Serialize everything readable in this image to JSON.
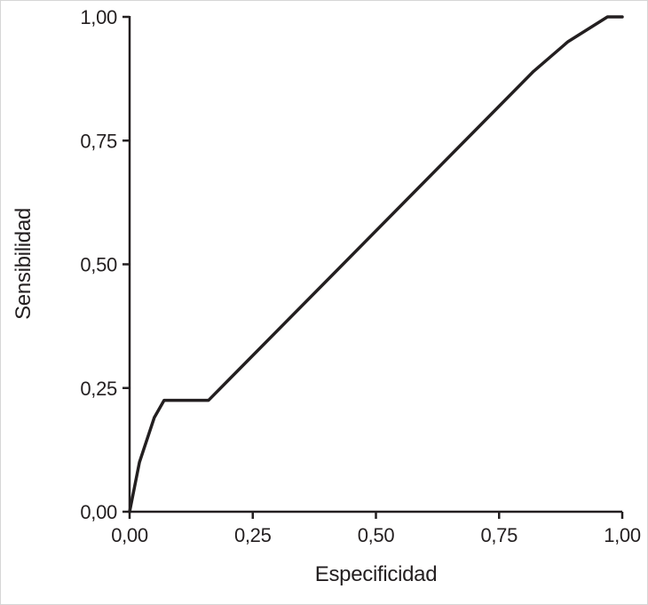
{
  "figure": {
    "background": "#ffffff",
    "border_color": "#d6d6d6"
  },
  "chart_data": {
    "type": "line",
    "title": "",
    "xlabel": "Especificidad",
    "ylabel": "Sensibilidad",
    "xlim": [
      0,
      1
    ],
    "ylim": [
      0,
      1
    ],
    "grid": false,
    "legend": false,
    "axis_color": "#231f20",
    "axis_width": 2.5,
    "tick_length": 8,
    "tick_font_size": 22,
    "x_ticks": {
      "values": [
        0,
        0.25,
        0.5,
        0.75,
        1.0
      ],
      "labels": [
        "0,00",
        "0,25",
        "0,50",
        "0,75",
        "1,00"
      ]
    },
    "y_ticks": {
      "values": [
        0,
        0.25,
        0.5,
        0.75,
        1.0
      ],
      "labels": [
        "0,00",
        "0,25",
        "0,50",
        "0,75",
        "1,00"
      ]
    },
    "series": [
      {
        "name": "roc-curve",
        "color": "#231f20",
        "stroke_width": 3.5,
        "points": [
          [
            0.0,
            0.0
          ],
          [
            0.02,
            0.1
          ],
          [
            0.05,
            0.19
          ],
          [
            0.07,
            0.225
          ],
          [
            0.16,
            0.225
          ],
          [
            0.82,
            0.89
          ],
          [
            0.89,
            0.95
          ],
          [
            0.97,
            1.0
          ],
          [
            1.0,
            1.0
          ]
        ]
      }
    ]
  }
}
